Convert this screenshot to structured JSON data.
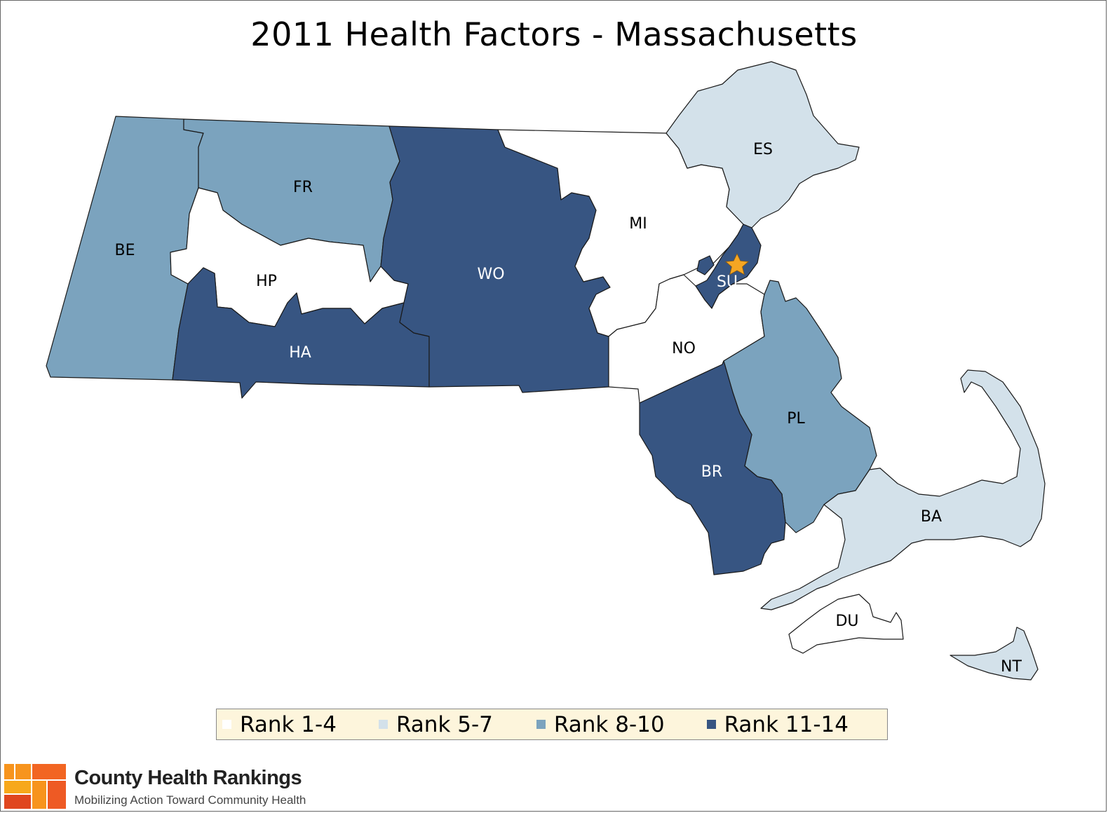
{
  "title": "2011 Health Factors - Massachusetts",
  "colors": {
    "rank_1_4": "#ffffff",
    "rank_5_7": "#d3e1ea",
    "rank_8_10": "#7ba3be",
    "rank_11_14": "#375582",
    "legend_bg": "#fdf5dc",
    "star": "#f5a623"
  },
  "legend": [
    {
      "label": "Rank 1-4",
      "color": "#ffffff"
    },
    {
      "label": "Rank 5-7",
      "color": "#d3e1ea"
    },
    {
      "label": "Rank 8-10",
      "color": "#7ba3be"
    },
    {
      "label": "Rank 11-14",
      "color": "#375582"
    }
  ],
  "counties": [
    {
      "code": "BE",
      "rank_group": "Rank 8-10"
    },
    {
      "code": "FR",
      "rank_group": "Rank 8-10"
    },
    {
      "code": "HP",
      "rank_group": "Rank 1-4"
    },
    {
      "code": "HA",
      "rank_group": "Rank 11-14"
    },
    {
      "code": "WO",
      "rank_group": "Rank 11-14"
    },
    {
      "code": "MI",
      "rank_group": "Rank 1-4"
    },
    {
      "code": "ES",
      "rank_group": "Rank 5-7"
    },
    {
      "code": "SU",
      "rank_group": "Rank 11-14"
    },
    {
      "code": "NO",
      "rank_group": "Rank 1-4"
    },
    {
      "code": "PL",
      "rank_group": "Rank 8-10"
    },
    {
      "code": "BR",
      "rank_group": "Rank 11-14"
    },
    {
      "code": "BA",
      "rank_group": "Rank 5-7"
    },
    {
      "code": "DU",
      "rank_group": "Rank 1-4"
    },
    {
      "code": "NT",
      "rank_group": "Rank 5-7"
    }
  ],
  "capital_marker": "star-icon",
  "logo": {
    "title": "County Health Rankings",
    "subtitle": "Mobilizing Action Toward Community Health"
  }
}
